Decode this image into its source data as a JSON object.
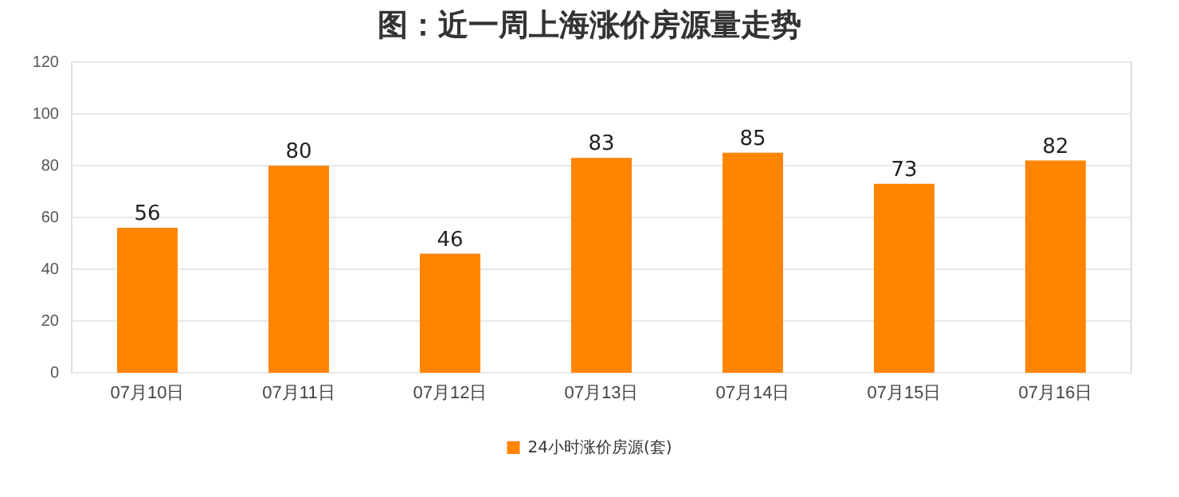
{
  "chart_data": {
    "type": "bar",
    "title": "图：近一周上海涨价房源量走势",
    "categories": [
      "07月10日",
      "07月11日",
      "07月12日",
      "07月13日",
      "07月14日",
      "07月15日",
      "07月16日"
    ],
    "series": [
      {
        "name": "24小时涨价房源(套)",
        "color": "#ff8400",
        "values": [
          56,
          80,
          46,
          83,
          85,
          73,
          82
        ]
      }
    ],
    "ylim": [
      0,
      120
    ],
    "yticks": [
      0,
      20,
      40,
      60,
      80,
      100,
      120
    ],
    "grid": "y",
    "legend": "bottom",
    "data_labels": true
  }
}
